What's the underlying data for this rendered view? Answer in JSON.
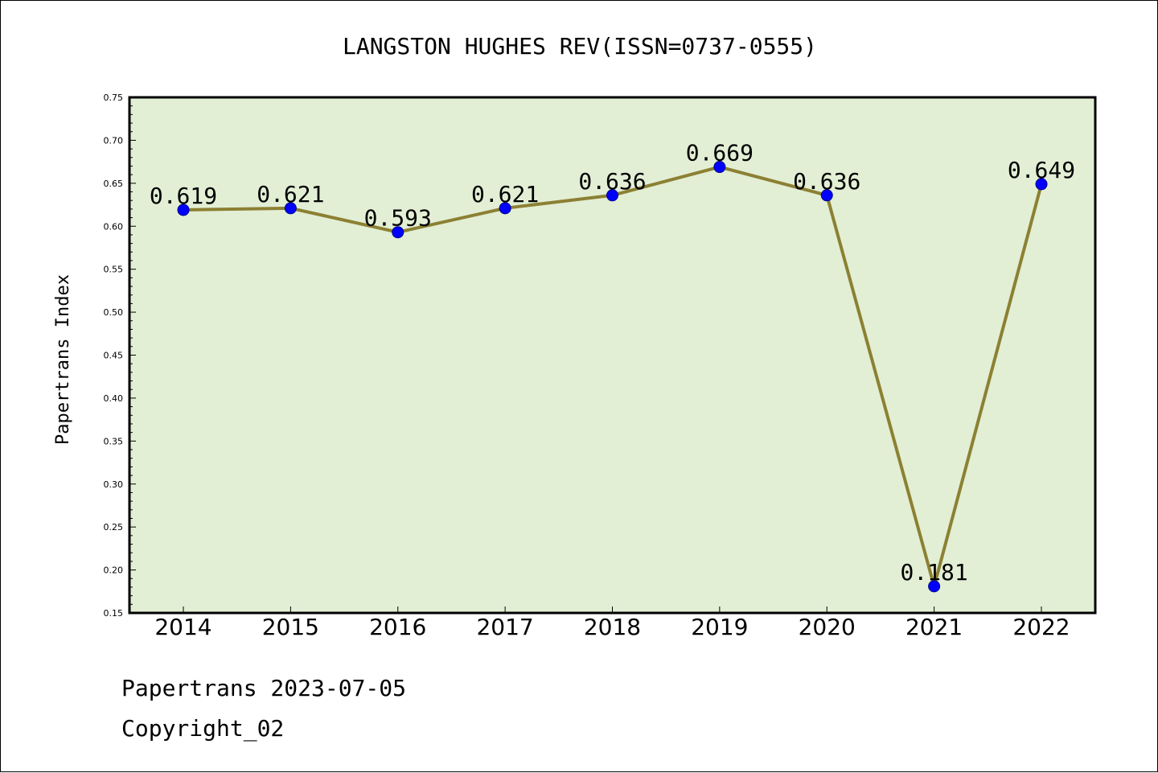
{
  "chart_data": {
    "type": "line",
    "title": "LANGSTON HUGHES REV(ISSN=0737-0555)",
    "xlabel": "",
    "ylabel": "Papertrans Index",
    "categories": [
      "2014",
      "2015",
      "2016",
      "2017",
      "2018",
      "2019",
      "2020",
      "2021",
      "2022"
    ],
    "values": [
      0.619,
      0.621,
      0.593,
      0.621,
      0.636,
      0.669,
      0.636,
      0.181,
      0.649
    ],
    "data_labels": [
      "0.619",
      "0.621",
      "0.593",
      "0.621",
      "0.636",
      "0.669",
      "0.636",
      "0.181",
      "0.649"
    ],
    "ylim": [
      0.15,
      0.75
    ],
    "yticks": [
      "0.15",
      "0.20",
      "0.25",
      "0.30",
      "0.35",
      "0.40",
      "0.45",
      "0.50",
      "0.55",
      "0.60",
      "0.65",
      "0.70",
      "0.75"
    ],
    "grid": false,
    "colors": {
      "plot_background": "#e2efd5",
      "line": "#8c8033",
      "marker": "#0000ff"
    }
  },
  "footer": {
    "line1": "Papertrans 2023-07-05",
    "line2": "Copyright_02"
  }
}
